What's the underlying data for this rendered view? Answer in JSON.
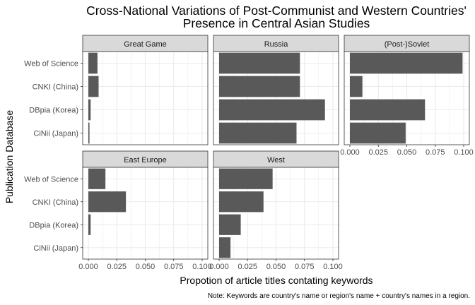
{
  "chart_data": {
    "type": "bar",
    "orientation": "horizontal",
    "title": "Cross-National Variations of Post-Communist and Western Countries'",
    "subtitle": "Presence in Central Asian Studies",
    "xlabel": "Propotion of article titles contating keywords",
    "ylabel": "Publication Database",
    "caption": "Note: Keywords are country's name or region's name + country's names in a region.",
    "categories": [
      "Web of Science",
      "CNKI (China)",
      "DBpia (Korea)",
      "CiNii (Japan)"
    ],
    "x_ticks": [
      "0.000",
      "0.025",
      "0.050",
      "0.075",
      "0.100"
    ],
    "xlim": [
      0,
      0.1
    ],
    "grid": true,
    "panels": [
      {
        "name": "Great Game",
        "values": [
          0.008,
          0.009,
          0.002,
          0.001
        ]
      },
      {
        "name": "Russia",
        "values": [
          0.071,
          0.071,
          0.093,
          0.068
        ]
      },
      {
        "name": "(Post-)Soviet",
        "values": [
          0.099,
          0.011,
          0.066,
          0.049
        ]
      },
      {
        "name": "East Europe",
        "values": [
          0.015,
          0.033,
          0.002,
          0.0
        ]
      },
      {
        "name": "West",
        "values": [
          0.047,
          0.039,
          0.019,
          0.01
        ]
      }
    ],
    "colors": {
      "bar": "#595959",
      "strip": "#d9d9d9",
      "panel_border": "#333333",
      "grid": "#ebebeb"
    }
  }
}
